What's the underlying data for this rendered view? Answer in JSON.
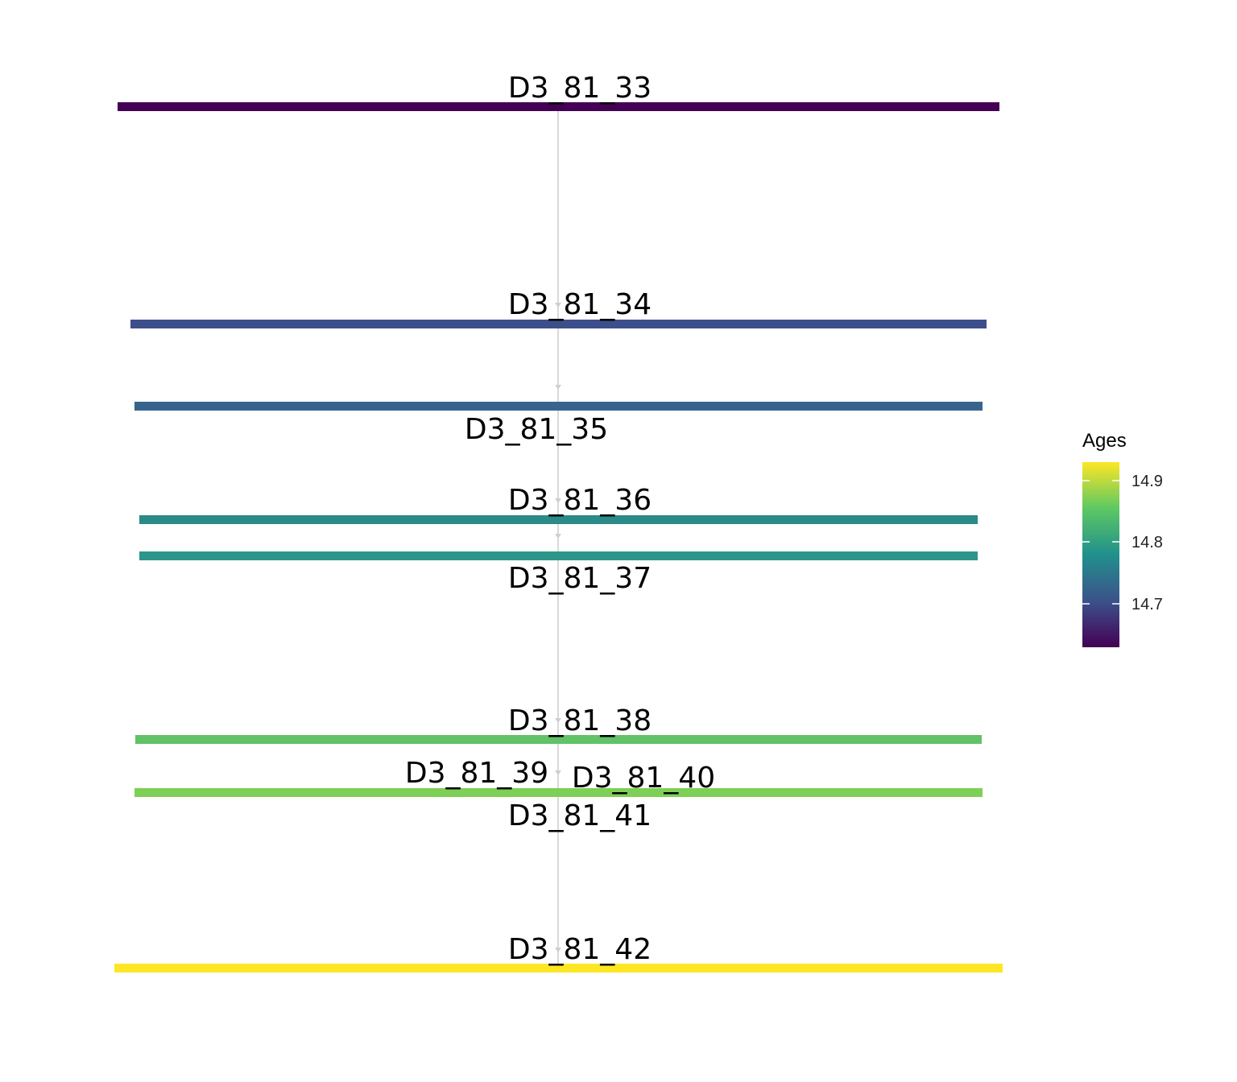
{
  "diagram": {
    "nodes": [
      {
        "id": "D3_81_33",
        "label": "D3_81_33",
        "color": "#440154"
      },
      {
        "id": "D3_81_34",
        "label": "D3_81_34",
        "color": "#3D4F8A"
      },
      {
        "id": "D3_81_35",
        "label": "D3_81_35",
        "color": "#37648C"
      },
      {
        "id": "D3_81_36",
        "label": "D3_81_36",
        "color": "#2A8B88"
      },
      {
        "id": "D3_81_37",
        "label": "D3_81_37",
        "color": "#2C968A"
      },
      {
        "id": "D3_81_38",
        "label": "D3_81_38",
        "color": "#61C267"
      },
      {
        "id": "D3_81_39",
        "label": "D3_81_39",
        "color": "#7ECF56"
      },
      {
        "id": "D3_81_40",
        "label": "D3_81_40",
        "color": "#7ECF56"
      },
      {
        "id": "D3_81_41",
        "label": "D3_81_41",
        "color": "#7ECF56"
      },
      {
        "id": "D3_81_42",
        "label": "D3_81_42",
        "color": "#FDE725"
      }
    ],
    "edges": [
      {
        "from": "D3_81_33",
        "to": "D3_81_34"
      },
      {
        "from": "D3_81_34",
        "to": "D3_81_35"
      },
      {
        "from": "D3_81_35",
        "to": "D3_81_36"
      },
      {
        "from": "D3_81_36",
        "to": "D3_81_37"
      },
      {
        "from": "D3_81_37",
        "to": "D3_81_38"
      },
      {
        "from": "D3_81_38",
        "to": "D3_81_39"
      },
      {
        "from": "D3_81_39",
        "to": "D3_81_40"
      },
      {
        "from": "D3_81_40",
        "to": "D3_81_41"
      },
      {
        "from": "D3_81_41",
        "to": "D3_81_42"
      }
    ],
    "edge_color": "#d9d9d9"
  },
  "legend": {
    "title": "Ages",
    "ticks": [
      "14.9",
      "14.8",
      "14.7"
    ],
    "colors": [
      "#440154",
      "#3B528B",
      "#21908C",
      "#5DC863",
      "#FDE725"
    ]
  }
}
